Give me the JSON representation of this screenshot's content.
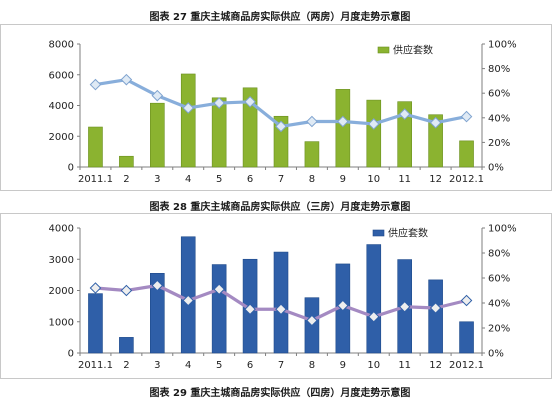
{
  "chart_data": [
    {
      "type": "bar",
      "title": "图表 27 重庆主城商品房实际供应（两房）月度走势示意图",
      "categories": [
        "2011.1",
        "2",
        "3",
        "4",
        "5",
        "6",
        "7",
        "8",
        "9",
        "10",
        "11",
        "12",
        "2012.1"
      ],
      "series": [
        {
          "name": "供应套数",
          "type": "bar",
          "axis": "left",
          "color": "#8bb330",
          "values": [
            2600,
            700,
            4150,
            6050,
            4500,
            5150,
            3300,
            1650,
            5050,
            4350,
            4250,
            3400,
            1700
          ]
        },
        {
          "type": "line",
          "axis": "right",
          "color": "#88aedb",
          "values": [
            0.67,
            0.71,
            0.58,
            0.48,
            0.52,
            0.53,
            0.33,
            0.37,
            0.37,
            0.35,
            0.43,
            0.36,
            0.41
          ]
        }
      ],
      "ylim_left": [
        0,
        8000
      ],
      "left_ticks": [
        "0",
        "2000",
        "4000",
        "6000",
        "8000"
      ],
      "ylim_right": [
        0,
        1
      ],
      "right_ticks": [
        "0%",
        "20%",
        "40%",
        "60%",
        "80%",
        "100%"
      ],
      "legend": "top-right",
      "grid": false
    },
    {
      "type": "bar",
      "title": "图表 28 重庆主城商品房实际供应（三房）月度走势示意图",
      "categories": [
        "2011.1",
        "2",
        "3",
        "4",
        "5",
        "6",
        "7",
        "8",
        "9",
        "10",
        "11",
        "12",
        "2012.1"
      ],
      "series": [
        {
          "name": "供应套数",
          "type": "bar",
          "axis": "left",
          "color": "#2f5fa8",
          "values": [
            1900,
            500,
            2550,
            3720,
            2830,
            3000,
            3230,
            1770,
            2850,
            3470,
            2990,
            2340,
            1000
          ]
        },
        {
          "type": "line",
          "axis": "right",
          "color": "#a48ac2",
          "values": [
            0.52,
            0.5,
            0.54,
            0.42,
            0.51,
            0.35,
            0.35,
            0.26,
            0.38,
            0.29,
            0.37,
            0.36,
            0.42
          ]
        }
      ],
      "ylim_left": [
        0,
        4000
      ],
      "left_ticks": [
        "0",
        "1000",
        "2000",
        "3000",
        "4000"
      ],
      "ylim_right": [
        0,
        1
      ],
      "right_ticks": [
        "0%",
        "20%",
        "40%",
        "60%",
        "80%",
        "100%"
      ],
      "legend": "top-right",
      "grid": false
    }
  ],
  "footer_caption": "图表 29 重庆主城商品房实际供应（四房）月度走势示意图"
}
